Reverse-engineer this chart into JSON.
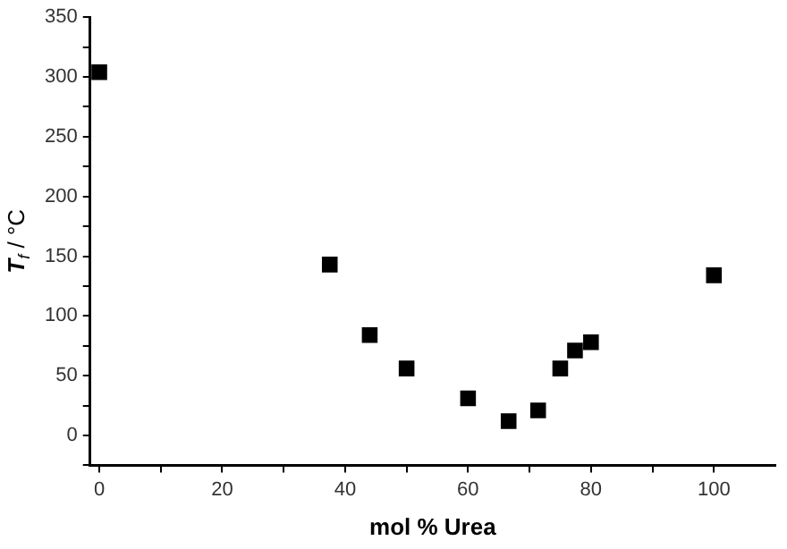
{
  "chart_data": {
    "type": "scatter",
    "xlabel": "mol % Urea",
    "ylabel": "T$_{f}$ / °C",
    "x": [
      0,
      37.5,
      44,
      50,
      60,
      66.6,
      71.4,
      75,
      77.4,
      80,
      100
    ],
    "series": [
      {
        "color": "#000000",
        "values": [
          304,
          143,
          84,
          56,
          31,
          12,
          21,
          56,
          71,
          78,
          134
        ]
      }
    ],
    "xlim": [
      -1.5,
      110
    ],
    "ylim": [
      -25,
      350
    ],
    "xticks": [
      0,
      {
        "value": 10,
        "label": null
      },
      20,
      {
        "value": 30,
        "label": null
      },
      40,
      {
        "value": 50,
        "label": null
      },
      60,
      {
        "value": 70,
        "label": null
      },
      80,
      {
        "value": 90,
        "label": null
      },
      100
    ],
    "yticks": [
      {
        "value": -25,
        "label": null
      },
      0,
      {
        "value": 25,
        "label": null
      },
      50,
      {
        "value": 75,
        "label": null
      },
      100,
      {
        "value": 125,
        "label": null
      },
      150,
      {
        "value": 175,
        "label": null
      },
      200,
      {
        "value": 225,
        "label": null
      },
      250,
      {
        "value": 275,
        "label": null
      },
      300,
      {
        "value": 325,
        "label": null
      },
      350
    ],
    "marker": "square",
    "grid": false,
    "legend": false
  }
}
